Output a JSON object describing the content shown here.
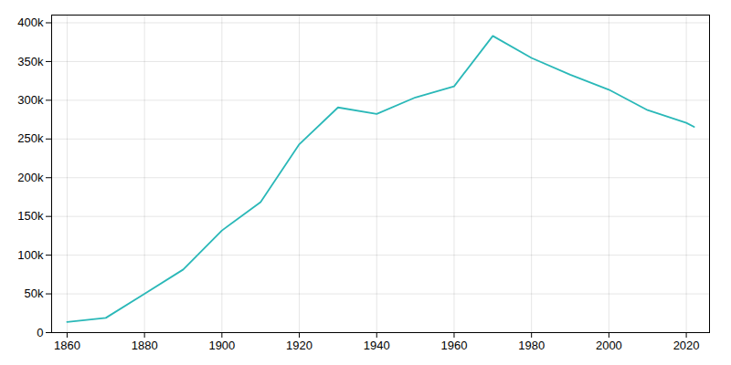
{
  "chart_data": {
    "type": "line",
    "x": [
      1860,
      1870,
      1880,
      1890,
      1900,
      1910,
      1920,
      1930,
      1940,
      1950,
      1960,
      1970,
      1980,
      1990,
      2000,
      2010,
      2020,
      2022
    ],
    "values": [
      13768,
      19000,
      50137,
      81434,
      131822,
      168497,
      243169,
      290718,
      282349,
      303616,
      318003,
      383062,
      354635,
      332943,
      313619,
      287208,
      270871,
      265611
    ],
    "color": "#2ab8b8",
    "xlim": [
      1856,
      2026
    ],
    "ylim": [
      0,
      410000
    ],
    "xticks": [
      1860,
      1880,
      1900,
      1920,
      1940,
      1960,
      1980,
      2000,
      2020
    ],
    "yticks": [
      0,
      {
        "value": 50000,
        "label": "50k"
      },
      {
        "value": 100000,
        "label": "100k"
      },
      {
        "value": 150000,
        "label": "150k"
      },
      {
        "value": 200000,
        "label": "200k"
      },
      {
        "value": 250000,
        "label": "250k"
      },
      {
        "value": 300000,
        "label": "300k"
      },
      {
        "value": 350000,
        "label": "350k"
      },
      {
        "value": 400000,
        "label": "400k"
      }
    ],
    "grid": true
  }
}
